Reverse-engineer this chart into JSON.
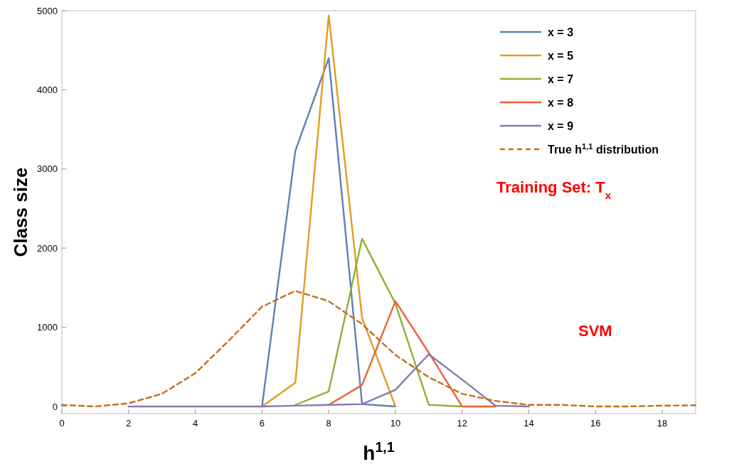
{
  "chart_data": {
    "type": "line",
    "xlabel": "h$^{1,1}$",
    "ylabel": "Class size",
    "xlim": [
      0,
      19
    ],
    "xticks": [
      0,
      2,
      4,
      6,
      8,
      10,
      12,
      14,
      16,
      18
    ],
    "ylim": [
      -90,
      5000
    ],
    "yticks": [
      0,
      1000,
      2000,
      3000,
      4000,
      5000
    ],
    "grid": false,
    "legend": "top right",
    "line_style": "solid",
    "marker": "none",
    "annotations": [
      "Training Set:  T$_{x}$",
      "SVM"
    ],
    "series": [
      {
        "name": "x = 3",
        "color": "#5e81b5",
        "x": [
          6,
          7,
          8,
          9,
          10
        ],
        "values": [
          0,
          3230,
          4400,
          30,
          0
        ]
      },
      {
        "name": "x = 5",
        "color": "#e19c24",
        "x": [
          6,
          7,
          8,
          9,
          10
        ],
        "values": [
          0,
          300,
          4940,
          1120,
          0
        ]
      },
      {
        "name": "x = 7",
        "color": "#8fb032",
        "x": [
          7,
          8,
          9,
          10,
          11,
          12
        ],
        "values": [
          20,
          190,
          2120,
          1300,
          20,
          0
        ]
      },
      {
        "name": "x = 8",
        "color": "#eb6235",
        "x": [
          8,
          9,
          10,
          11,
          12,
          13
        ],
        "values": [
          20,
          270,
          1330,
          680,
          0,
          0
        ]
      },
      {
        "name": "x = 9",
        "color": "#8778b3",
        "x": [
          2,
          3,
          4,
          5,
          6,
          7,
          8,
          9,
          10,
          11,
          12,
          13,
          14
        ],
        "values": [
          0,
          0,
          0,
          0,
          0,
          10,
          20,
          30,
          210,
          660,
          340,
          10,
          0
        ]
      },
      {
        "name": "True h$^{1,1}$ distribution",
        "color": "#c56e1a",
        "line_style": "dashed",
        "x": [
          0,
          1,
          2,
          3,
          4,
          5,
          6,
          7,
          8,
          9,
          10,
          11,
          12,
          13,
          14,
          15,
          16,
          17,
          18,
          19
        ],
        "values": [
          20,
          0,
          40,
          160,
          420,
          830,
          1260,
          1460,
          1330,
          1040,
          650,
          370,
          160,
          70,
          20,
          20,
          0,
          0,
          10,
          15
        ]
      }
    ]
  }
}
